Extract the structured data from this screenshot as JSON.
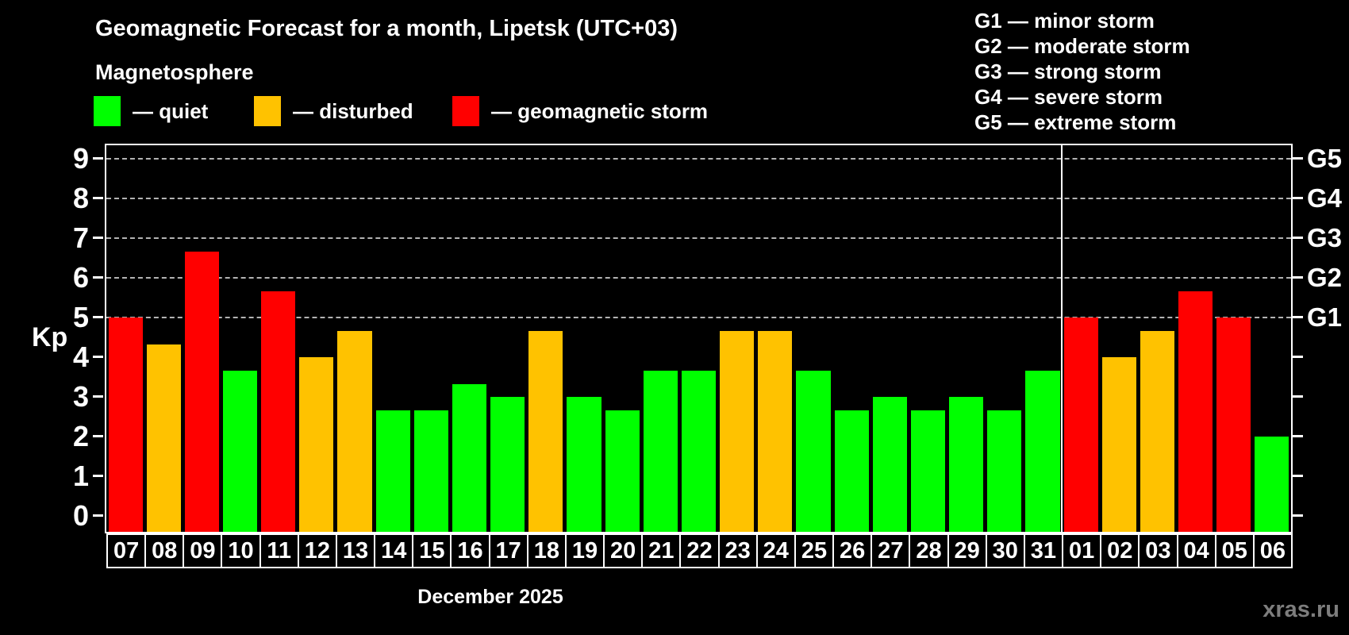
{
  "chart_data": {
    "type": "bar",
    "title": "Geomagnetic Forecast for a month, Lipetsk (UTC+03)",
    "subtitle": "Magnetosphere",
    "ylabel": "Kp",
    "xlabel": "December 2025",
    "ylim": [
      0,
      9.3
    ],
    "yticks": [
      0,
      1,
      2,
      3,
      4,
      5,
      6,
      7,
      8,
      9
    ],
    "gridlines_kp": [
      5,
      6,
      7,
      8,
      9
    ],
    "grid": "horizontal dashed lines at storm levels Kp 5-9",
    "legend_position": "top-left",
    "right_axis_labels": [
      {
        "label": "G1",
        "kp": 5
      },
      {
        "label": "G2",
        "kp": 6
      },
      {
        "label": "G3",
        "kp": 7
      },
      {
        "label": "G4",
        "kp": 8
      },
      {
        "label": "G5",
        "kp": 9
      }
    ],
    "categories": [
      "07",
      "08",
      "09",
      "10",
      "11",
      "12",
      "13",
      "14",
      "15",
      "16",
      "17",
      "18",
      "19",
      "20",
      "21",
      "22",
      "23",
      "24",
      "25",
      "26",
      "27",
      "28",
      "29",
      "30",
      "31",
      "01",
      "02",
      "03",
      "04",
      "05",
      "06"
    ],
    "series": [
      {
        "name": "Kp forecast",
        "values": [
          5.0,
          4.33,
          6.67,
          3.67,
          5.67,
          4.0,
          4.67,
          2.67,
          2.67,
          3.33,
          3.0,
          4.67,
          3.0,
          2.67,
          3.67,
          3.67,
          4.67,
          4.67,
          3.67,
          2.67,
          3.0,
          2.67,
          3.0,
          2.67,
          3.67,
          5.0,
          4.0,
          4.67,
          5.67,
          5.0,
          2.0
        ]
      }
    ],
    "statuses": [
      "storm",
      "disturbed",
      "storm",
      "quiet",
      "storm",
      "disturbed",
      "disturbed",
      "quiet",
      "quiet",
      "quiet",
      "quiet",
      "disturbed",
      "quiet",
      "quiet",
      "quiet",
      "quiet",
      "disturbed",
      "disturbed",
      "quiet",
      "quiet",
      "quiet",
      "quiet",
      "quiet",
      "quiet",
      "quiet",
      "storm",
      "disturbed",
      "disturbed",
      "storm",
      "storm",
      "quiet"
    ],
    "month_separator_index": 25
  },
  "legend": {
    "items": [
      {
        "key": "quiet",
        "label": "— quiet",
        "color": "#00ff00"
      },
      {
        "key": "disturbed",
        "label": "— disturbed",
        "color": "#ffc200"
      },
      {
        "key": "storm",
        "label": "— geomagnetic storm",
        "color": "#ff0000"
      }
    ]
  },
  "storm_scale_legend": {
    "lines": [
      "G1 — minor storm",
      "G2 — moderate storm",
      "G3 — strong storm",
      "G4 — severe storm",
      "G5 — extreme storm"
    ]
  },
  "watermark": "xras.ru",
  "colors": {
    "background": "#000000",
    "text": "#ffffff",
    "axis": "#ffffff",
    "grid": "#b3b3b3",
    "watermark": "#7d7d7d",
    "quiet": "#00ff00",
    "disturbed": "#ffc200",
    "storm": "#ff0000"
  }
}
